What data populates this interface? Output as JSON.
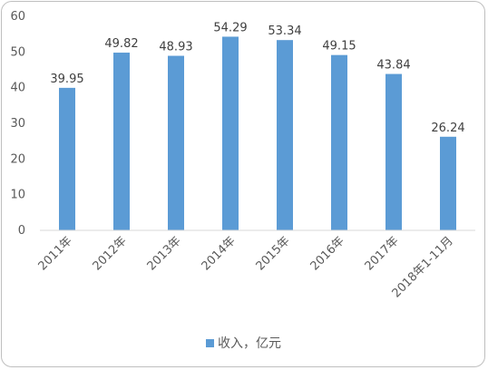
{
  "chart_data": {
    "type": "bar",
    "categories": [
      "2011年",
      "2012年",
      "2013年",
      "2014年",
      "2015年",
      "2016年",
      "2017年",
      "2018年1-11月"
    ],
    "series": [
      {
        "name": "收入，亿元",
        "values": [
          39.95,
          49.82,
          48.93,
          54.29,
          53.34,
          49.15,
          43.84,
          26.24
        ]
      }
    ],
    "y_ticks": [
      "0",
      "10",
      "20",
      "30",
      "40",
      "50",
      "60"
    ],
    "ylim": [
      0,
      60
    ],
    "grid": false,
    "legend_position": "bottom",
    "bar_color": "#5B9BD5",
    "data_labels": true
  }
}
